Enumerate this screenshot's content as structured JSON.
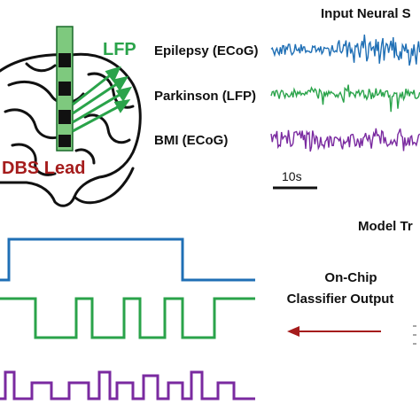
{
  "labels": {
    "lfp": "LFP",
    "dbs_lead": "DBS Lead",
    "input_title": "Input Neural S",
    "scale": "10s",
    "model_title": "Model Tr",
    "classifier_line1": "On-Chip",
    "classifier_line2": "Classifier Output"
  },
  "signals": [
    {
      "name": "Epilepsy (ECoG)",
      "color": "#1f6fb5"
    },
    {
      "name": "Parkinson (LFP)",
      "color": "#2aa34a"
    },
    {
      "name": "BMI (ECoG)",
      "color": "#7a2aa0"
    }
  ],
  "colors": {
    "lfp_text": "#2aa34a",
    "dbs_text": "#a51c1c",
    "arrow": "#a51c1c",
    "lead": "#7ec97e"
  }
}
